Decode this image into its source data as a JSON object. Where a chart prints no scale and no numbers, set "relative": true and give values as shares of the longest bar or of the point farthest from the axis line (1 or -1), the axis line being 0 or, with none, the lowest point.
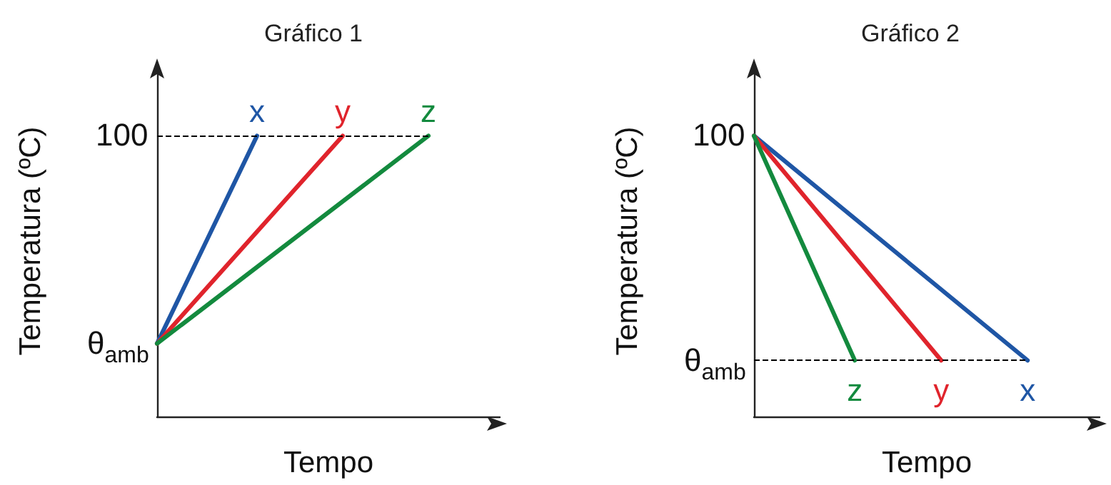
{
  "chart_data": [
    {
      "type": "line",
      "title": "Gráfico 1",
      "xlabel": "Tempo",
      "ylabel": "Temperatura (ºC)",
      "relative": true,
      "categories": [
        null,
        null,
        null,
        null,
        null,
        null,
        null,
        null,
        null,
        null,
        null,
        null,
        null,
        null,
        null,
        null,
        null,
        null,
        null,
        null,
        null,
        null,
        null,
        null,
        null
      ],
      "series": [
        {
          "name": "x",
          "color": "#1f56a5",
          "values": [
            0.26,
            null,
            null,
            null,
            null,
            null,
            null,
            1,
            null,
            null,
            null,
            null,
            null,
            null,
            null,
            null,
            null,
            null,
            null,
            null,
            null,
            null,
            null,
            null,
            null
          ]
        },
        {
          "name": "y",
          "color": "#e0242c",
          "values": [
            0.26,
            null,
            null,
            null,
            null,
            null,
            null,
            null,
            null,
            null,
            null,
            null,
            null,
            1,
            null,
            null,
            null,
            null,
            null,
            null,
            null,
            null,
            null,
            null,
            null
          ]
        },
        {
          "name": "z",
          "color": "#138a3e",
          "values": [
            0.26,
            null,
            null,
            null,
            null,
            null,
            null,
            null,
            null,
            null,
            null,
            null,
            null,
            null,
            null,
            null,
            null,
            null,
            null,
            1,
            null,
            null,
            null,
            null,
            null
          ]
        }
      ],
      "annotations": [
        "θ$_{amb}$",
        "100"
      ],
      "ref_lines": [
        {
          "axis": "y",
          "value": 1,
          "color": "#000000",
          "line_style": "dashed"
        }
      ],
      "grid": false,
      "legend": false,
      "marker": "none",
      "line_style": "solid"
    },
    {
      "type": "line",
      "title": "Gráfico 2",
      "xlabel": "Tempo",
      "ylabel": "Temperatura (ºC)",
      "relative": true,
      "categories": [
        null,
        null,
        null,
        null,
        null,
        null,
        null,
        null,
        null,
        null,
        null,
        null,
        null,
        null,
        null,
        null,
        null,
        null,
        null,
        null,
        null,
        null,
        null,
        null,
        null
      ],
      "series": [
        {
          "name": "x",
          "color": "#1f56a5",
          "values": [
            1,
            null,
            null,
            null,
            null,
            null,
            null,
            null,
            null,
            null,
            null,
            null,
            null,
            null,
            null,
            null,
            null,
            null,
            null,
            0.2,
            null,
            null,
            null,
            null,
            null
          ]
        },
        {
          "name": "y",
          "color": "#e0242c",
          "values": [
            1,
            null,
            null,
            null,
            null,
            null,
            null,
            null,
            null,
            null,
            null,
            null,
            null,
            0.2,
            null,
            null,
            null,
            null,
            null,
            null,
            null,
            null,
            null,
            null,
            null
          ]
        },
        {
          "name": "z",
          "color": "#138a3e",
          "values": [
            1,
            null,
            null,
            null,
            null,
            null,
            null,
            0.2,
            null,
            null,
            null,
            null,
            null,
            null,
            null,
            null,
            null,
            null,
            null,
            null,
            null,
            null,
            null,
            null,
            null
          ]
        }
      ],
      "annotations": [
        "θ$_{amb}$",
        "100"
      ],
      "ref_lines": [
        {
          "axis": "y",
          "value": 0.2,
          "color": "#000000",
          "line_style": "dashed"
        }
      ],
      "grid": false,
      "legend": false,
      "marker": "none",
      "line_style": "solid"
    }
  ]
}
